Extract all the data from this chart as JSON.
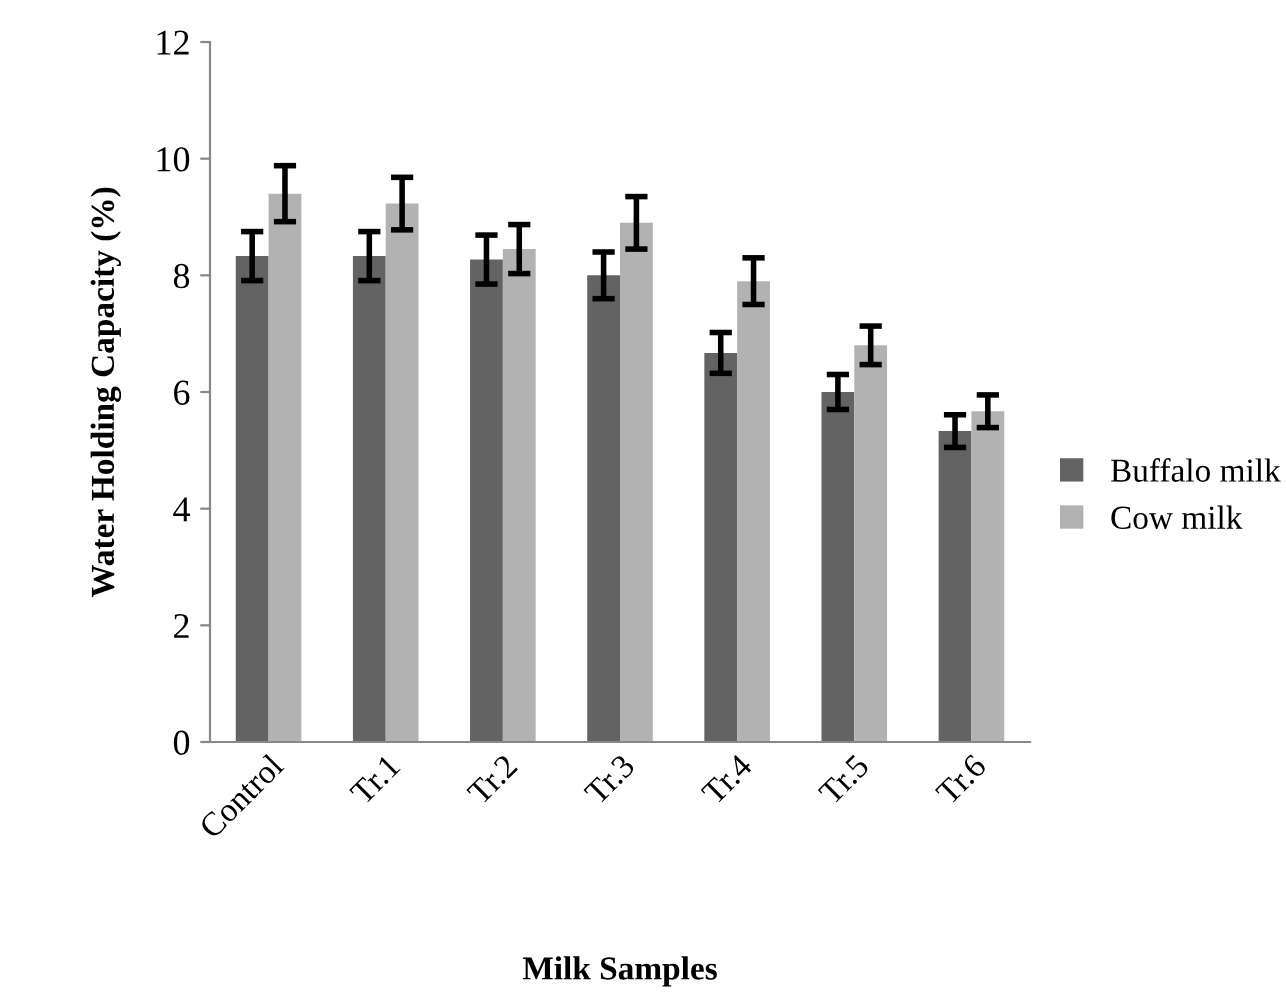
{
  "chart_data": {
    "type": "bar",
    "xlabel": "Milk Samples",
    "ylabel": "Water Holding Capacity (%)",
    "categories": [
      "Control",
      "Tr.1",
      "Tr.2",
      "Tr.3",
      "Tr.4",
      "Tr.5",
      "Tr.6"
    ],
    "series": [
      {
        "name": "Buffalo milk",
        "color": "#636363",
        "values": [
          8.33,
          8.33,
          8.27,
          8.0,
          6.67,
          6.0,
          5.33
        ],
        "errors": [
          0.42,
          0.42,
          0.42,
          0.4,
          0.35,
          0.3,
          0.28
        ]
      },
      {
        "name": "Cow milk",
        "color": "#b2b2b2",
        "values": [
          9.4,
          9.23,
          8.45,
          8.9,
          7.9,
          6.8,
          5.67
        ],
        "errors": [
          0.48,
          0.45,
          0.42,
          0.45,
          0.4,
          0.33,
          0.28
        ]
      }
    ],
    "ylim": [
      0,
      12
    ],
    "yticks": [
      0,
      2,
      4,
      6,
      8,
      10,
      12
    ],
    "grid": false,
    "legend": "right"
  }
}
